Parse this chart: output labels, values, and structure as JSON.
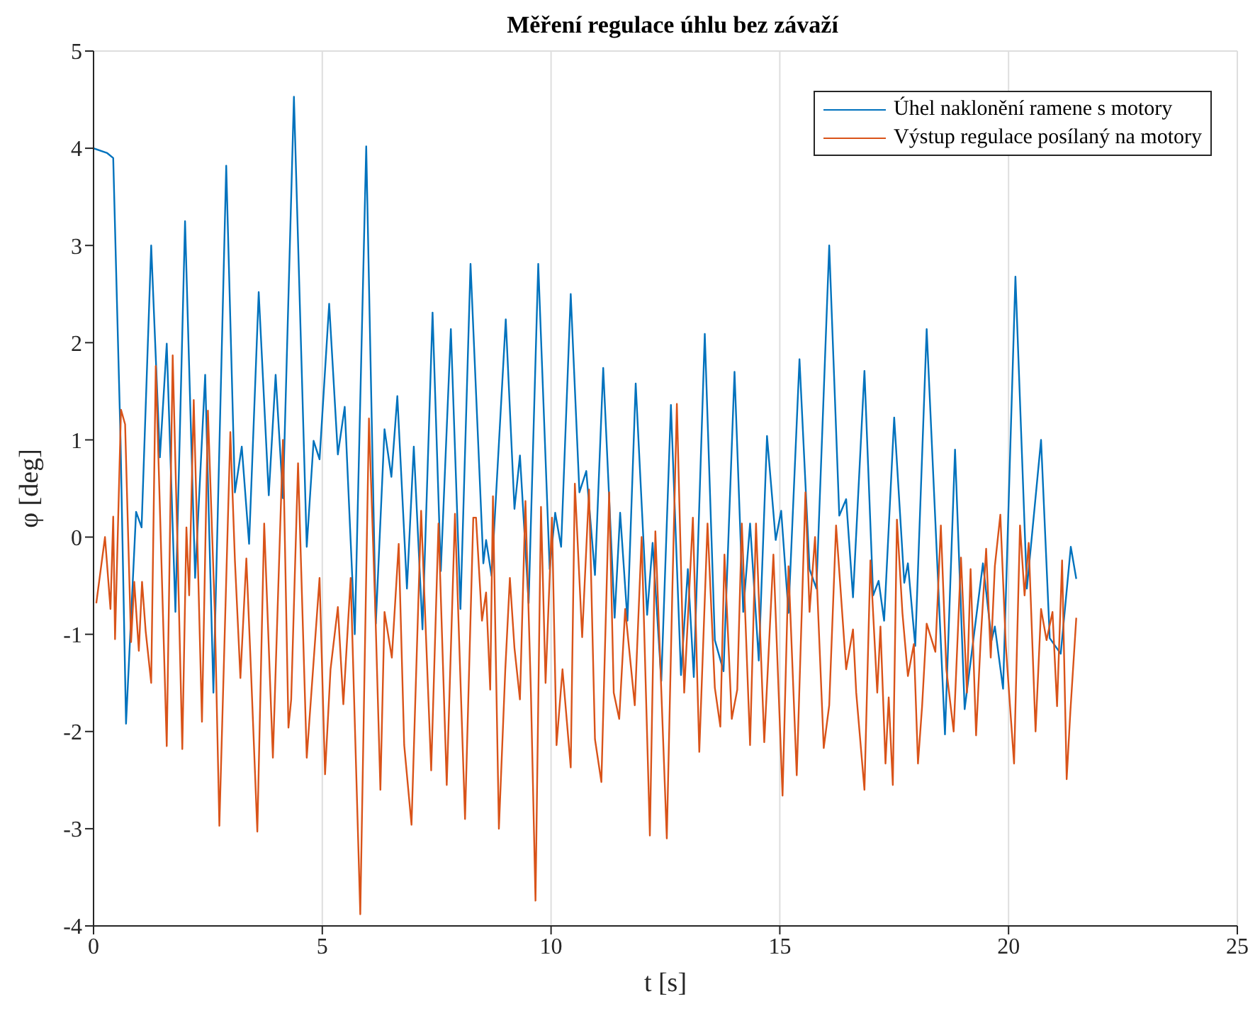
{
  "chart_data": {
    "type": "line",
    "title": "Měření regulace úhlu bez závaží",
    "xlabel": "t [s]",
    "ylabel": "φ [deg]",
    "xlim": [
      0,
      25
    ],
    "xticks": [
      0,
      5,
      10,
      15,
      20,
      25
    ],
    "ylim": [
      -4,
      5
    ],
    "yticks": [
      -4,
      -3,
      -2,
      -1,
      0,
      1,
      2,
      3,
      4,
      5
    ],
    "grid": true,
    "legend": "top right",
    "marker": "none",
    "line_style": "solid",
    "series": [
      {
        "name": "Úhel naklonění ramene s motory",
        "color": "#0072bd",
        "x": [
          0,
          0.3,
          0.43,
          0.59,
          0.71,
          0.93,
          1.05,
          1.26,
          1.45,
          1.6,
          1.79,
          2.0,
          2.22,
          2.44,
          2.62,
          2.9,
          3.09,
          3.24,
          3.4,
          3.61,
          3.83,
          3.98,
          4.14,
          4.38,
          4.66,
          4.81,
          4.94,
          5.15,
          5.34,
          5.49,
          5.71,
          5.96,
          6.17,
          6.36,
          6.51,
          6.64,
          6.85,
          7.0,
          7.19,
          7.41,
          7.59,
          7.81,
          8.02,
          8.24,
          8.52,
          8.58,
          8.7,
          9.01,
          9.2,
          9.32,
          9.51,
          9.72,
          9.97,
          10.09,
          10.22,
          10.43,
          10.62,
          10.77,
          10.96,
          11.14,
          11.39,
          11.51,
          11.67,
          11.85,
          12.1,
          12.22,
          12.41,
          12.62,
          12.84,
          12.99,
          13.12,
          13.36,
          13.58,
          13.77,
          14.01,
          14.2,
          14.35,
          14.54,
          14.72,
          14.91,
          15.03,
          15.19,
          15.43,
          15.65,
          15.8,
          16.08,
          16.3,
          16.45,
          16.6,
          16.85,
          17.04,
          17.16,
          17.28,
          17.5,
          17.72,
          17.8,
          17.96,
          18.21,
          18.61,
          18.83,
          19.04,
          19.44,
          19.63,
          19.7,
          19.88,
          20.15,
          20.4,
          20.71,
          20.9,
          21.14,
          21.36,
          21.48
        ],
        "values": [
          4.0,
          3.95,
          3.9,
          1.0,
          -1.92,
          0.26,
          0.1,
          3.0,
          0.82,
          1.99,
          -0.77,
          3.25,
          -0.42,
          1.67,
          -1.6,
          3.82,
          0.46,
          0.93,
          -0.07,
          2.52,
          0.43,
          1.67,
          0.4,
          4.53,
          -0.1,
          0.99,
          0.8,
          2.4,
          0.85,
          1.34,
          -1.0,
          4.02,
          -0.89,
          1.11,
          0.62,
          1.45,
          -0.53,
          0.93,
          -0.95,
          2.31,
          -0.35,
          2.14,
          -0.74,
          2.81,
          -0.27,
          -0.03,
          -0.4,
          2.24,
          0.29,
          0.84,
          -0.68,
          2.81,
          -0.33,
          0.25,
          -0.1,
          2.5,
          0.46,
          0.68,
          -0.39,
          1.74,
          -0.83,
          0.25,
          -0.86,
          1.58,
          -0.8,
          -0.06,
          -1.48,
          1.36,
          -1.42,
          -0.33,
          -1.44,
          2.09,
          -1.06,
          -1.38,
          1.7,
          -0.77,
          0.14,
          -1.27,
          1.04,
          -0.03,
          0.27,
          -0.78,
          1.83,
          -0.33,
          -0.53,
          3.0,
          0.22,
          0.39,
          -0.62,
          1.71,
          -0.6,
          -0.45,
          -0.86,
          1.23,
          -0.47,
          -0.27,
          -1.12,
          2.14,
          -2.03,
          0.9,
          -1.77,
          -0.27,
          -1.06,
          -0.92,
          -1.56,
          2.68,
          -0.53,
          1.0,
          -1.04,
          -1.2,
          -0.1,
          -0.43
        ]
      },
      {
        "name": "Výstup regulace posílaný na motory",
        "color": "#d95319",
        "x": [
          0.06,
          0.25,
          0.37,
          0.43,
          0.47,
          0.6,
          0.69,
          0.82,
          0.89,
          0.99,
          1.06,
          1.14,
          1.26,
          1.36,
          1.46,
          1.6,
          1.73,
          1.83,
          1.94,
          2.03,
          2.09,
          2.19,
          2.37,
          2.5,
          2.65,
          2.75,
          2.99,
          3.09,
          3.21,
          3.34,
          3.44,
          3.58,
          3.73,
          3.92,
          4.14,
          4.26,
          4.32,
          4.47,
          4.66,
          4.94,
          5.06,
          5.18,
          5.34,
          5.46,
          5.62,
          5.83,
          6.02,
          6.16,
          6.27,
          6.36,
          6.52,
          6.67,
          6.79,
          6.95,
          7.16,
          7.38,
          7.54,
          7.72,
          7.9,
          8.12,
          8.3,
          8.36,
          8.49,
          8.58,
          8.67,
          8.73,
          8.86,
          9.0,
          9.1,
          9.2,
          9.32,
          9.44,
          9.56,
          9.66,
          9.78,
          9.88,
          10.02,
          10.12,
          10.25,
          10.43,
          10.52,
          10.68,
          10.83,
          10.96,
          11.1,
          11.27,
          11.37,
          11.49,
          11.62,
          11.83,
          11.98,
          12.16,
          12.28,
          12.53,
          12.65,
          12.75,
          12.91,
          13.1,
          13.24,
          13.42,
          13.58,
          13.7,
          13.79,
          13.95,
          14.07,
          14.17,
          14.35,
          14.48,
          14.66,
          14.86,
          15.06,
          15.19,
          15.37,
          15.56,
          15.65,
          15.77,
          15.96,
          16.08,
          16.23,
          16.45,
          16.6,
          16.67,
          16.85,
          16.98,
          17.13,
          17.2,
          17.31,
          17.38,
          17.47,
          17.56,
          17.68,
          17.8,
          17.93,
          18.02,
          18.11,
          18.21,
          18.4,
          18.52,
          18.64,
          18.8,
          18.96,
          19.09,
          19.17,
          19.29,
          19.39,
          19.51,
          19.61,
          19.7,
          19.82,
          19.94,
          20.12,
          20.25,
          20.35,
          20.44,
          20.59,
          20.71,
          20.83,
          20.96,
          21.06,
          21.17,
          21.27,
          21.35,
          21.48
        ],
        "values": [
          -0.68,
          0.0,
          -0.74,
          0.21,
          -1.05,
          1.31,
          1.16,
          -1.08,
          -0.46,
          -1.17,
          -0.46,
          -0.97,
          -1.5,
          1.76,
          0.14,
          -2.15,
          1.87,
          0.0,
          -2.18,
          0.1,
          -0.6,
          1.41,
          -1.9,
          1.3,
          -0.77,
          -2.97,
          1.08,
          -0.24,
          -1.45,
          -0.22,
          -1.36,
          -3.03,
          0.14,
          -2.27,
          1.0,
          -1.96,
          -1.67,
          0.76,
          -2.27,
          -0.42,
          -2.44,
          -1.36,
          -0.72,
          -1.72,
          -0.42,
          -3.88,
          1.22,
          -0.77,
          -2.6,
          -0.77,
          -1.24,
          -0.07,
          -2.14,
          -2.96,
          0.27,
          -2.4,
          0.14,
          -2.55,
          0.24,
          -2.9,
          0.2,
          0.2,
          -0.86,
          -0.57,
          -1.57,
          0.42,
          -3.0,
          -1.36,
          -0.42,
          -1.14,
          -1.67,
          0.37,
          -1.6,
          -3.74,
          0.31,
          -1.5,
          0.2,
          -2.14,
          -1.36,
          -2.37,
          0.55,
          -1.03,
          0.49,
          -2.08,
          -2.52,
          0.46,
          -1.6,
          -1.87,
          -0.74,
          -1.73,
          0.0,
          -3.07,
          0.06,
          -3.1,
          -0.57,
          1.37,
          -1.6,
          0.2,
          -2.21,
          0.14,
          -1.55,
          -1.95,
          -0.18,
          -1.87,
          -1.57,
          0.14,
          -2.14,
          0.14,
          -2.11,
          -0.18,
          -2.66,
          -0.3,
          -2.45,
          0.46,
          -0.77,
          0.0,
          -2.17,
          -1.73,
          0.12,
          -1.36,
          -0.95,
          -1.6,
          -2.6,
          -0.24,
          -1.6,
          -0.92,
          -2.33,
          -1.65,
          -2.55,
          0.18,
          -0.78,
          -1.43,
          -1.1,
          -2.33,
          -1.74,
          -0.89,
          -1.18,
          0.12,
          -1.36,
          -2.0,
          -0.21,
          -1.6,
          -0.33,
          -2.04,
          -1.06,
          -0.12,
          -1.24,
          -0.3,
          0.23,
          -1.12,
          -2.33,
          0.12,
          -0.6,
          -0.06,
          -2.0,
          -0.74,
          -1.06,
          -0.77,
          -1.74,
          -0.24,
          -2.49,
          -1.8,
          -0.83
        ]
      }
    ]
  }
}
